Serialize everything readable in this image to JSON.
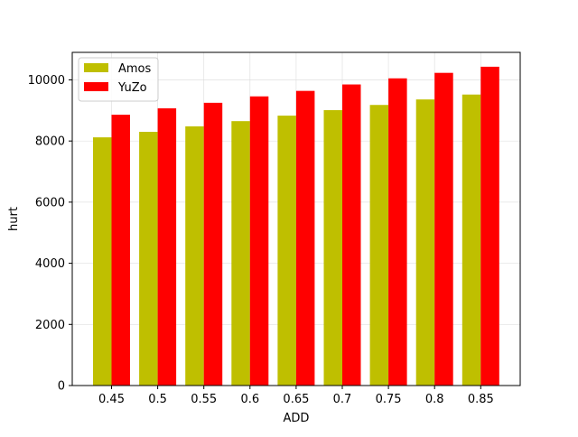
{
  "chart_data": {
    "type": "bar",
    "title": "",
    "xlabel": "ADD",
    "ylabel": "hurt",
    "categories": [
      "0.45",
      "0.5",
      "0.55",
      "0.6",
      "0.65",
      "0.7",
      "0.75",
      "0.8",
      "0.85"
    ],
    "series": [
      {
        "name": "Amos",
        "color": "#bfbf00",
        "values": [
          8120,
          8300,
          8480,
          8650,
          8830,
          9010,
          9180,
          9360,
          9520
        ]
      },
      {
        "name": "YuZo",
        "color": "#ff0000",
        "values": [
          8860,
          9070,
          9250,
          9460,
          9640,
          9850,
          10050,
          10230,
          10430
        ]
      }
    ],
    "ylim": [
      0,
      10900
    ],
    "yticks": [
      0,
      2000,
      4000,
      6000,
      8000,
      10000
    ],
    "grid": true,
    "legend_position": "top-left"
  }
}
